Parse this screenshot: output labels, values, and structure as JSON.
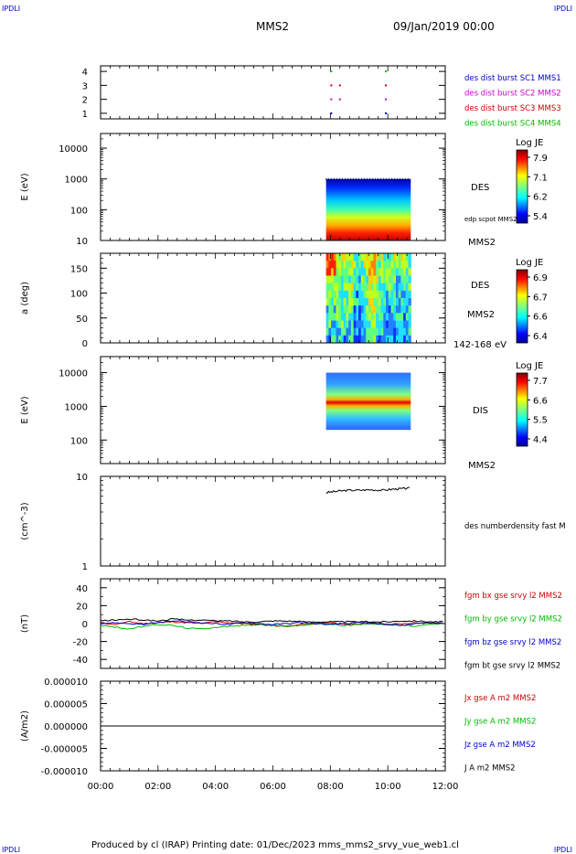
{
  "header": {
    "corner_label": "IPDLI",
    "spacecraft": "MMS2",
    "datetime": "09/Jan/2019 00:00"
  },
  "footer": {
    "text": "Produced by cl (IRAP)   Printing date: 01/Dec/2023   mms_mms2_srvy_vue_web1.cl"
  },
  "x_axis": {
    "ticks": [
      "00:00",
      "02:00",
      "04:00",
      "06:00",
      "08:00",
      "10:00",
      "12:00"
    ],
    "range_hours": [
      0,
      12
    ]
  },
  "chart_data": [
    {
      "type": "scatter",
      "panel": "burst",
      "yticks": [
        "1",
        "2",
        "3",
        "4"
      ],
      "ylim": [
        0.6,
        4.4
      ],
      "legend": [
        {
          "label": "des dist burst SC1 MMS1",
          "color": "#0000cc",
          "y": 1,
          "hours": [
            8.0,
            9.9
          ]
        },
        {
          "label": "des dist burst SC2 MMS2",
          "color": "#cc00cc",
          "y": 2,
          "hours": [
            8.0,
            8.3,
            9.9
          ]
        },
        {
          "label": "des dist burst SC3 MMS3",
          "color": "#cc0000",
          "y": 3,
          "hours": [
            8.0,
            8.3,
            9.9
          ]
        },
        {
          "label": "des dist burst SC4 MMS4",
          "color": "#00bb00",
          "y": 4,
          "hours": [
            8.0,
            9.9
          ]
        }
      ]
    },
    {
      "type": "heatmap",
      "panel": "des-energy",
      "ylabel": "E (eV)",
      "yticks": [
        "10",
        "100",
        "1000",
        "10000"
      ],
      "ylog": true,
      "ylim": [
        10,
        30000
      ],
      "data_x_range_hours": [
        7.85,
        10.8
      ],
      "data_y_range": [
        10,
        1000
      ],
      "label": "DES",
      "sublabel": "edp scpot MMS2",
      "spacecraft": "MMS2",
      "colorbar": {
        "title": "Log JE",
        "ticks": [
          "7.9",
          "7.1",
          "6.2",
          "5.4"
        ]
      }
    },
    {
      "type": "heatmap",
      "panel": "des-pitch",
      "ylabel": "a (deg)",
      "yticks": [
        "0",
        "50",
        "100",
        "150"
      ],
      "ylim": [
        0,
        180
      ],
      "data_x_range_hours": [
        7.85,
        10.8
      ],
      "data_y_range": [
        0,
        180
      ],
      "label": "DES",
      "spacecraft": "MMS2",
      "energy_range": "142-168 eV",
      "colorbar": {
        "title": "Log JE",
        "ticks": [
          "6.9",
          "6.7",
          "6.6",
          "6.4"
        ]
      }
    },
    {
      "type": "heatmap",
      "panel": "dis-energy",
      "ylabel": "E (eV)",
      "yticks": [
        "100",
        "1000",
        "10000"
      ],
      "ylog": true,
      "ylim": [
        20,
        30000
      ],
      "data_x_range_hours": [
        7.85,
        10.8
      ],
      "data_y_range": [
        200,
        10000
      ],
      "label": "DIS",
      "spacecraft": "MMS2",
      "colorbar": {
        "title": "Log JE",
        "ticks": [
          "7.7",
          "6.6",
          "5.5",
          "4.4"
        ]
      }
    },
    {
      "type": "line",
      "panel": "density",
      "ylabel": "(cm^-3)",
      "yticks": [
        "1",
        "10"
      ],
      "ylog": true,
      "ylim": [
        1,
        10
      ],
      "series": [
        {
          "name": "des numberdensity fast M",
          "color": "#000000",
          "x": [
            7.85,
            8.2,
            8.6,
            9.0,
            9.4,
            9.8,
            10.2,
            10.5,
            10.8
          ],
          "y": [
            6.6,
            6.8,
            7.0,
            7.0,
            7.1,
            7.0,
            7.2,
            7.3,
            7.4
          ]
        }
      ]
    },
    {
      "type": "line",
      "panel": "fgm",
      "ylabel": "(nT)",
      "yticks": [
        "-40",
        "-20",
        "0",
        "20",
        "40"
      ],
      "ylim": [
        -50,
        50
      ],
      "series": [
        {
          "name": "fgm bx gse srvy l2 MMS2",
          "color": "#cc0000",
          "x": [
            0,
            0.5,
            1,
            1.5,
            2,
            2.5,
            3,
            3.5,
            4,
            4.5,
            5,
            5.5,
            6,
            6.5,
            7,
            7.5,
            8,
            8.5,
            9,
            9.5,
            10,
            10.5,
            11,
            11.5,
            12
          ],
          "y": [
            1,
            -1,
            2,
            0,
            1,
            2,
            1,
            0,
            2,
            1,
            0,
            -1,
            -2,
            -3,
            -1,
            0,
            1,
            -1,
            0,
            1,
            -1,
            0,
            1,
            0,
            1
          ]
        },
        {
          "name": "fgm by gse srvy l2 MMS2",
          "color": "#00bb00",
          "x": [
            0,
            0.5,
            1,
            1.5,
            2,
            2.5,
            3,
            3.5,
            4,
            4.5,
            5,
            5.5,
            6,
            6.5,
            7,
            7.5,
            8,
            8.5,
            9,
            9.5,
            10,
            10.5,
            11,
            11.5,
            12
          ],
          "y": [
            -2,
            -4,
            -6,
            -3,
            -1,
            -2,
            -5,
            -6,
            -4,
            -3,
            -2,
            -1,
            -2,
            -3,
            -2,
            0,
            -1,
            -2,
            -1,
            0,
            -1,
            -2,
            -3,
            -1,
            0
          ]
        },
        {
          "name": "fgm bz gse srvy l2 MMS2",
          "color": "#0000cc",
          "x": [
            0,
            0.5,
            1,
            1.5,
            2,
            2.5,
            3,
            3.5,
            4,
            4.5,
            5,
            5.5,
            6,
            6.5,
            7,
            7.5,
            8,
            8.5,
            9,
            9.5,
            10,
            10.5,
            11,
            11.5,
            12
          ],
          "y": [
            0,
            1,
            0,
            -1,
            1,
            3,
            2,
            1,
            0,
            -1,
            1,
            0,
            -1,
            0,
            1,
            0,
            -1,
            0,
            1,
            0,
            -1,
            -2,
            0,
            1,
            0
          ]
        },
        {
          "name": "fgm bt gse srvy l2 MMS2",
          "color": "#000000",
          "x": [
            0,
            0.5,
            1,
            1.5,
            2,
            2.5,
            3,
            3.5,
            4,
            4.5,
            5,
            5.5,
            6,
            6.5,
            7,
            7.5,
            8,
            8.5,
            9,
            9.5,
            10,
            10.5,
            11,
            11.5,
            12
          ],
          "y": [
            3,
            4,
            5,
            4,
            3,
            5,
            4,
            4,
            3,
            3,
            2,
            2,
            3,
            3,
            2,
            2,
            2,
            2,
            2,
            2,
            2,
            3,
            3,
            2,
            2
          ]
        }
      ]
    },
    {
      "type": "line",
      "panel": "current",
      "ylabel": "(A/m2)",
      "yticks": [
        "-0.000010",
        "-0.000005",
        "0.000000",
        "0.000005",
        "0.000010"
      ],
      "ylim": [
        -1e-05,
        1e-05
      ],
      "series": [
        {
          "name": "Jx gse A m2 MMS2",
          "color": "#cc0000",
          "x": [
            0,
            12
          ],
          "y": [
            0,
            0
          ]
        },
        {
          "name": "Jy gse A m2 MMS2",
          "color": "#00bb00",
          "x": [
            0,
            12
          ],
          "y": [
            0,
            0
          ]
        },
        {
          "name": "Jz gse A m2 MMS2",
          "color": "#0000cc",
          "x": [
            0,
            12
          ],
          "y": [
            0,
            0
          ]
        },
        {
          "name": "J A m2 MMS2",
          "color": "#000000",
          "x": [
            0,
            12
          ],
          "y": [
            0,
            0
          ]
        }
      ]
    }
  ]
}
